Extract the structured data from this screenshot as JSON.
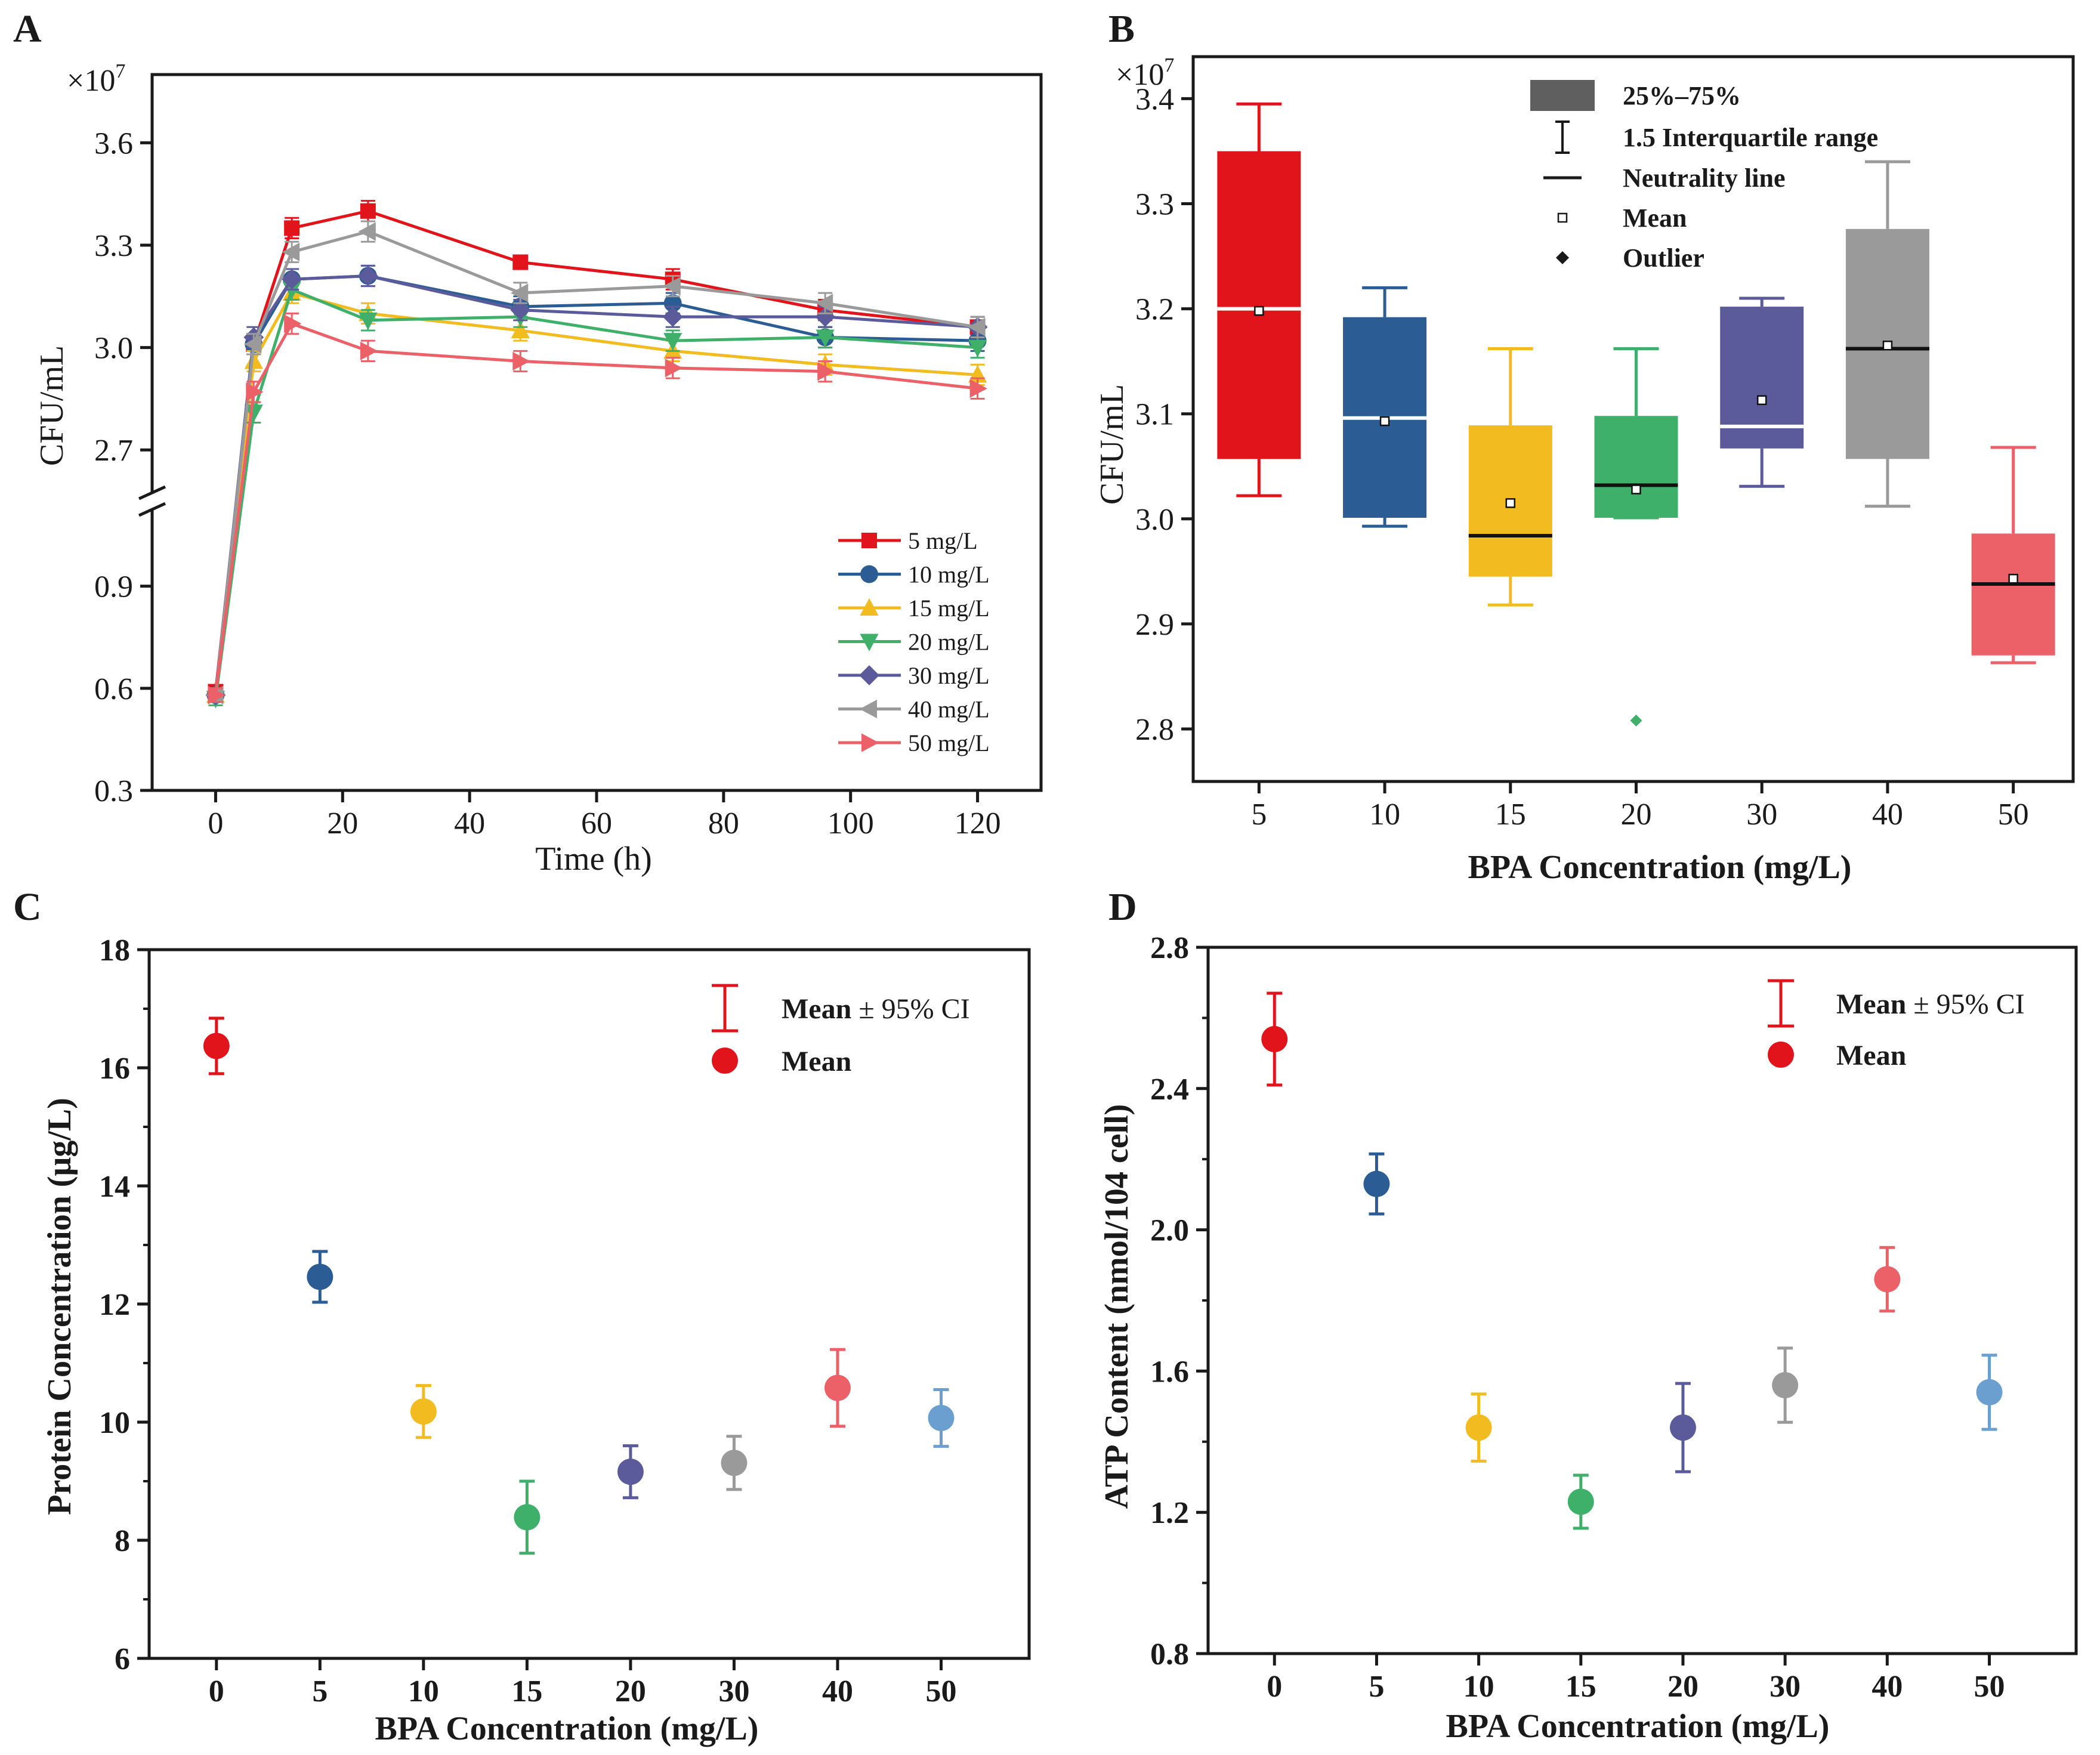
{
  "figure": {
    "panels": [
      "A",
      "B",
      "C",
      "D"
    ]
  },
  "colors": {
    "c5": "#e0141a",
    "c10": "#2b5d94",
    "c15": "#f2bb1f",
    "c20": "#3eb06a",
    "c30": "#5b5b9c",
    "c40": "#9a9a9a",
    "c50": "#ec6068",
    "c50d": "#6b9fd0"
  },
  "chart_data": [
    {
      "id": "A",
      "type": "line",
      "title": "",
      "xlabel": "Time (h)",
      "ylabel": "CFU/mL",
      "scale_label": "×10",
      "scale_exp": "7",
      "xlim": [
        -10,
        130
      ],
      "xticks": [
        "0",
        "20",
        "40",
        "60",
        "80",
        "100",
        "120"
      ],
      "ylim_upper": [
        2.55,
        3.8
      ],
      "yticks_upper": [
        "2.7",
        "3.0",
        "3.3",
        "3.6"
      ],
      "ylim_lower": [
        0.3,
        1.15
      ],
      "yticks_lower": [
        "0.3",
        "0.6",
        "0.9"
      ],
      "x": [
        0,
        6,
        12,
        24,
        48,
        72,
        96,
        120
      ],
      "series": [
        {
          "name": "5 mg/L",
          "marker": "square",
          "color": "#e0141a",
          "values": [
            0.59,
            3.01,
            3.35,
            3.4,
            3.25,
            3.2,
            3.11,
            3.06
          ],
          "err": [
            0.02,
            0.03,
            0.03,
            0.03,
            0.02,
            0.03,
            0.03,
            0.03
          ]
        },
        {
          "name": "10 mg/L",
          "marker": "circle",
          "color": "#2b5d94",
          "values": [
            0.58,
            3.01,
            3.2,
            3.21,
            3.12,
            3.13,
            3.03,
            3.02
          ],
          "err": [
            0.02,
            0.03,
            0.03,
            0.03,
            0.03,
            0.03,
            0.03,
            0.03
          ]
        },
        {
          "name": "15 mg/L",
          "marker": "triangle-up",
          "color": "#f2bb1f",
          "values": [
            0.58,
            2.96,
            3.16,
            3.1,
            3.05,
            2.99,
            2.95,
            2.92
          ],
          "err": [
            0.02,
            0.03,
            0.03,
            0.03,
            0.03,
            0.03,
            0.03,
            0.03
          ]
        },
        {
          "name": "20 mg/L",
          "marker": "triangle-down",
          "color": "#3eb06a",
          "values": [
            0.57,
            2.81,
            3.17,
            3.08,
            3.09,
            3.02,
            3.03,
            3.0
          ],
          "err": [
            0.02,
            0.03,
            0.03,
            0.03,
            0.03,
            0.03,
            0.03,
            0.03
          ]
        },
        {
          "name": "30 mg/L",
          "marker": "diamond",
          "color": "#5b5b9c",
          "values": [
            0.58,
            3.03,
            3.2,
            3.21,
            3.11,
            3.09,
            3.09,
            3.06
          ],
          "err": [
            0.02,
            0.03,
            0.03,
            0.03,
            0.03,
            0.03,
            0.03,
            0.03
          ]
        },
        {
          "name": "40 mg/L",
          "marker": "triangle-left",
          "color": "#9a9a9a",
          "values": [
            0.58,
            3.01,
            3.28,
            3.34,
            3.16,
            3.18,
            3.13,
            3.06
          ],
          "err": [
            0.02,
            0.03,
            0.03,
            0.03,
            0.03,
            0.03,
            0.03,
            0.03
          ]
        },
        {
          "name": "50 mg/L",
          "marker": "triangle-right",
          "color": "#ec6068",
          "values": [
            0.58,
            2.87,
            3.07,
            2.99,
            2.96,
            2.94,
            2.93,
            2.88
          ],
          "err": [
            0.02,
            0.03,
            0.03,
            0.03,
            0.03,
            0.03,
            0.03,
            0.03
          ]
        }
      ],
      "legend_position": "bottom-right"
    },
    {
      "id": "B",
      "type": "box",
      "title": "",
      "xlabel": "BPA Concentration (mg/L)",
      "ylabel": "CFU/mL",
      "scale_label": "×10",
      "scale_exp": "7",
      "ylim": [
        2.75,
        3.44
      ],
      "yticks": [
        "2.8",
        "2.9",
        "3.0",
        "3.1",
        "3.2",
        "3.3",
        "3.4"
      ],
      "categories": [
        "5",
        "10",
        "15",
        "20",
        "30",
        "40",
        "50"
      ],
      "boxes": [
        {
          "category": "5",
          "color": "#e0141a",
          "whisker_low": 3.022,
          "q1": 3.057,
          "median": 3.2,
          "q3": 3.35,
          "whisker_high": 3.395,
          "mean": 3.198,
          "median_line": "white",
          "outliers": []
        },
        {
          "category": "10",
          "color": "#2b5d94",
          "whisker_low": 2.993,
          "q1": 3.001,
          "median": 3.096,
          "q3": 3.192,
          "whisker_high": 3.22,
          "mean": 3.093,
          "median_line": "white",
          "outliers": []
        },
        {
          "category": "15",
          "color": "#f2bb1f",
          "whisker_low": 2.918,
          "q1": 2.945,
          "median": 2.984,
          "q3": 3.089,
          "whisker_high": 3.162,
          "mean": 3.015,
          "median_line": "black",
          "outliers": []
        },
        {
          "category": "20",
          "color": "#3eb06a",
          "whisker_low": 3.001,
          "q1": 3.001,
          "median": 3.032,
          "q3": 3.098,
          "whisker_high": 3.162,
          "mean": 3.028,
          "median_line": "black",
          "outliers": [
            2.808
          ]
        },
        {
          "category": "30",
          "color": "#5b5b9c",
          "whisker_low": 3.031,
          "q1": 3.067,
          "median": 3.088,
          "q3": 3.202,
          "whisker_high": 3.21,
          "mean": 3.113,
          "median_line": "white",
          "outliers": []
        },
        {
          "category": "40",
          "color": "#9a9a9a",
          "whisker_low": 3.012,
          "q1": 3.057,
          "median": 3.162,
          "q3": 3.276,
          "whisker_high": 3.34,
          "mean": 3.165,
          "median_line": "black",
          "outliers": []
        },
        {
          "category": "50",
          "color": "#ec6068",
          "whisker_low": 2.863,
          "q1": 2.87,
          "median": 2.938,
          "q3": 2.986,
          "whisker_high": 3.068,
          "mean": 2.943,
          "median_line": "black",
          "outliers": []
        }
      ],
      "legend": [
        {
          "key": "box",
          "label": "25%–75%"
        },
        {
          "key": "whisker",
          "label": "1.5 Interquartile range"
        },
        {
          "key": "median",
          "label": "Neutrality  line"
        },
        {
          "key": "mean",
          "label": "Mean"
        },
        {
          "key": "outlier",
          "label": "Outlier"
        }
      ],
      "legend_position": "top-center"
    },
    {
      "id": "C",
      "type": "scatter",
      "title": "",
      "xlabel": "BPA Concentration (mg/L)",
      "ylabel": "Protein Concentration (μg/L)",
      "ylim": [
        6,
        18
      ],
      "yticks": [
        "6",
        "8",
        "10",
        "12",
        "14",
        "16",
        "18"
      ],
      "categories": [
        "0",
        "5",
        "10",
        "15",
        "20",
        "30",
        "40",
        "50"
      ],
      "means": [
        16.37,
        12.46,
        10.18,
        8.39,
        9.16,
        9.31,
        10.58,
        10.07
      ],
      "ci": [
        0.47,
        0.43,
        0.44,
        0.61,
        0.44,
        0.45,
        0.65,
        0.48
      ],
      "point_colors": [
        "#e0141a",
        "#2b5d94",
        "#f2bb1f",
        "#3eb06a",
        "#5b5b9c",
        "#9a9a9a",
        "#ec6068",
        "#6b9fd0"
      ],
      "legend": {
        "ci_label": "Mean",
        "ci_suffix": " ± 95% CI",
        "mean_label": "Mean"
      },
      "legend_position": "top-right"
    },
    {
      "id": "D",
      "type": "scatter",
      "title": "",
      "xlabel": "BPA Concentration (mg/L)",
      "ylabel": "ATP Content (nmol/104 cell)",
      "ylim": [
        0.8,
        2.8
      ],
      "yticks": [
        "0.8",
        "1.2",
        "1.6",
        "2.0",
        "2.4",
        "2.8"
      ],
      "categories": [
        "0",
        "5",
        "10",
        "15",
        "20",
        "30",
        "40",
        "50"
      ],
      "means": [
        2.54,
        2.13,
        1.44,
        1.23,
        1.44,
        1.56,
        1.86,
        1.54
      ],
      "ci": [
        0.13,
        0.085,
        0.095,
        0.075,
        0.125,
        0.105,
        0.09,
        0.105
      ],
      "point_colors": [
        "#e0141a",
        "#2b5d94",
        "#f2bb1f",
        "#3eb06a",
        "#5b5b9c",
        "#9a9a9a",
        "#ec6068",
        "#6b9fd0"
      ],
      "legend": {
        "ci_label": "Mean",
        "ci_suffix": " ± 95% CI",
        "mean_label": "Mean"
      },
      "legend_position": "top-right"
    }
  ]
}
